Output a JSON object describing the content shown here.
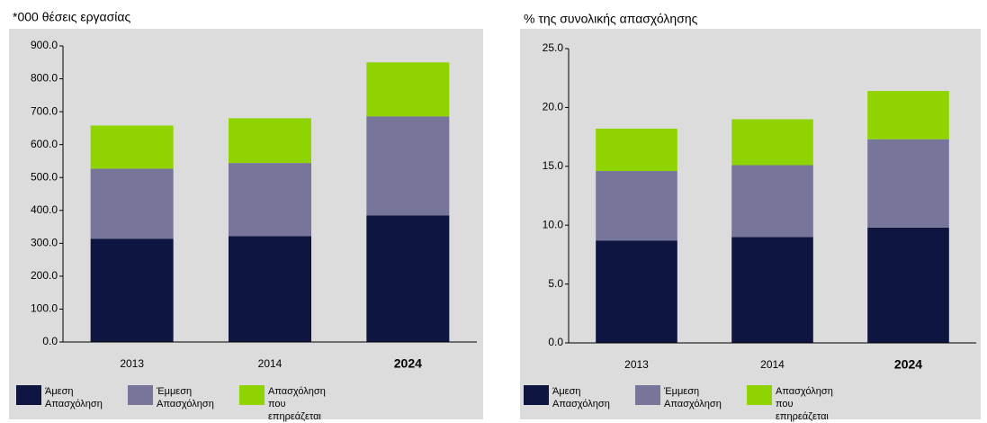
{
  "chart_data": [
    {
      "type": "bar",
      "stacked": true,
      "title": "*000 θέσεις εργασίας",
      "categories": [
        "2013",
        "2014",
        "2024"
      ],
      "series": [
        {
          "name": "Άμεση Απασχόληση",
          "color": "#0d1540",
          "values": [
            314,
            322,
            385
          ]
        },
        {
          "name": "Έμμεση Απασχόληση",
          "color": "#77759a",
          "values": [
            213,
            222,
            301
          ]
        },
        {
          "name": "Απασχόληση που επηρεάζεται",
          "color": "#8fd400",
          "values": [
            131,
            136,
            164
          ]
        }
      ],
      "ylim": [
        0,
        900
      ],
      "yticks": [
        {
          "value": 0,
          "label": "0.0"
        },
        {
          "value": 100,
          "label": "100.0"
        },
        {
          "value": 200,
          "label": "200.0"
        },
        {
          "value": 300,
          "label": "300.0"
        },
        {
          "value": 400,
          "label": "400.0"
        },
        {
          "value": 500,
          "label": "500.0"
        },
        {
          "value": 600,
          "label": "600.0"
        },
        {
          "value": 700,
          "label": "700.0"
        },
        {
          "value": 800,
          "label": "800.0"
        },
        {
          "value": 900,
          "label": "900.0"
        }
      ],
      "legend": "bottom"
    },
    {
      "type": "bar",
      "stacked": true,
      "title": "% της συνολικής απασχόλησης",
      "categories": [
        "2013",
        "2014",
        "2024"
      ],
      "series": [
        {
          "name": "Άμεση Απασχόληση",
          "color": "#0d1540",
          "values": [
            8.7,
            9.0,
            9.8
          ]
        },
        {
          "name": "Έμμεση Απασχόληση",
          "color": "#77759a",
          "values": [
            5.9,
            6.1,
            7.5
          ]
        },
        {
          "name": "Απασχόληση που επηρεάζεται",
          "color": "#8fd400",
          "values": [
            3.6,
            3.9,
            4.1
          ]
        }
      ],
      "ylim": [
        0,
        25
      ],
      "yticks": [
        {
          "value": 0,
          "label": "0.0"
        },
        {
          "value": 5,
          "label": "5.0"
        },
        {
          "value": 10,
          "label": "10.0"
        },
        {
          "value": 15,
          "label": "15.0"
        },
        {
          "value": 20,
          "label": "20.0"
        },
        {
          "value": 25,
          "label": "25.0"
        }
      ],
      "legend": "bottom"
    }
  ]
}
